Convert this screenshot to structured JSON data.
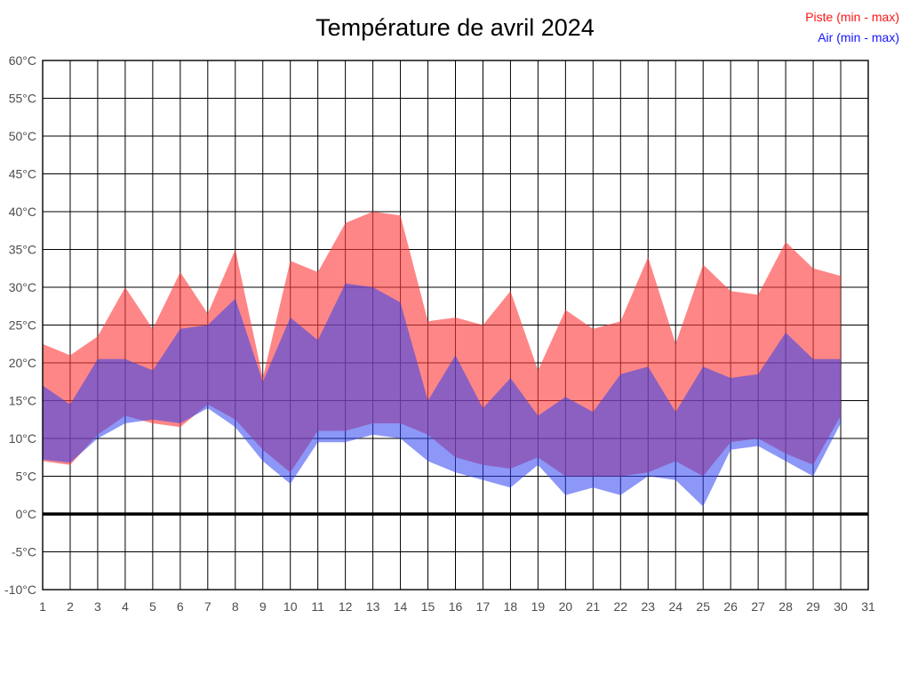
{
  "header": {
    "title": "Température de avril 2024"
  },
  "legend": [
    {
      "label": "Piste (min - max)",
      "color": "#ff1414"
    },
    {
      "label": "Air (min - max)",
      "color": "#1414ff"
    }
  ],
  "chart_data": {
    "type": "area",
    "subtype": "min-max-bands",
    "title": "Température de avril 2024",
    "xlabel": "",
    "ylabel": "",
    "grid": "both",
    "legend_position": "top-right",
    "x_axis": {
      "ticks": [
        1,
        2,
        3,
        4,
        5,
        6,
        7,
        8,
        9,
        10,
        11,
        12,
        13,
        14,
        15,
        16,
        17,
        18,
        19,
        20,
        21,
        22,
        23,
        24,
        25,
        26,
        27,
        28,
        29,
        30,
        31
      ],
      "tick_labels": [
        "1",
        "2",
        "3",
        "4",
        "5",
        "6",
        "7",
        "8",
        "9",
        "10",
        "11",
        "12",
        "13",
        "14",
        "15",
        "16",
        "17",
        "18",
        "19",
        "20",
        "21",
        "22",
        "23",
        "24",
        "25",
        "26",
        "27",
        "28",
        "29",
        "30",
        "31"
      ]
    },
    "y_axis": {
      "min": -10,
      "max": 60,
      "tick_step": 5,
      "unit": "°C",
      "tick_labels": [
        "60°C",
        "55°C",
        "50°C",
        "45°C",
        "40°C",
        "35°C",
        "30°C",
        "25°C",
        "20°C",
        "15°C",
        "10°C",
        "5°C",
        "0°C",
        "-5°C",
        "-10°C"
      ],
      "zero_line_bold": true
    },
    "days": [
      1,
      2,
      3,
      4,
      5,
      6,
      7,
      8,
      9,
      10,
      11,
      12,
      13,
      14,
      15,
      16,
      17,
      18,
      19,
      20,
      21,
      22,
      23,
      24,
      25,
      26,
      27,
      28,
      29,
      30
    ],
    "series": [
      {
        "name": "Piste max",
        "values": [
          22.5,
          21,
          23.5,
          30,
          24.5,
          32,
          26.5,
          35,
          18,
          33.5,
          32,
          38.5,
          40,
          39.5,
          25.5,
          26,
          25,
          29.5,
          19,
          27,
          24.5,
          25.5,
          34,
          22.5,
          33,
          29.5,
          29,
          36,
          32.5,
          31.5
        ]
      },
      {
        "name": "Piste min",
        "values": [
          7,
          6.5,
          10.5,
          13,
          12,
          11.5,
          14.5,
          12.5,
          8.5,
          5.5,
          11,
          11,
          12,
          12,
          10.5,
          7.5,
          6.5,
          6,
          7.5,
          5,
          5,
          5,
          5.5,
          7,
          5,
          9.5,
          10,
          8,
          6.5,
          13
        ]
      },
      {
        "name": "Air max",
        "values": [
          17,
          14.5,
          20.5,
          20.5,
          19,
          24.5,
          25,
          28.5,
          17.5,
          26,
          23,
          30.5,
          30,
          28,
          15,
          21,
          14,
          18,
          13,
          15.5,
          13.5,
          18.5,
          19.5,
          13.5,
          19.5,
          18,
          18.5,
          24,
          20.5,
          20.5
        ]
      },
      {
        "name": "Air min",
        "values": [
          7.2,
          6.8,
          10,
          12,
          12.5,
          12,
          14,
          11.5,
          7,
          4,
          9.5,
          9.5,
          10.5,
          10,
          7,
          5.5,
          4.5,
          3.5,
          6.5,
          2.5,
          3.5,
          2.5,
          5,
          4.5,
          1,
          8.5,
          9,
          7,
          5,
          12
        ]
      }
    ],
    "bands": [
      {
        "name": "Piste (min - max)",
        "fill": "rgba(255,60,60,0.62)",
        "max_series": 0,
        "min_series": 1
      },
      {
        "name": "Air (min - max)",
        "fill": "rgba(45,65,240,0.55)",
        "max_series": 2,
        "min_series": 3
      }
    ],
    "colors": {
      "grid": "#000000",
      "border": "#000000",
      "zero_line": "#000000",
      "tick_text": "#4d4d4d",
      "title_text": "#000000"
    }
  }
}
